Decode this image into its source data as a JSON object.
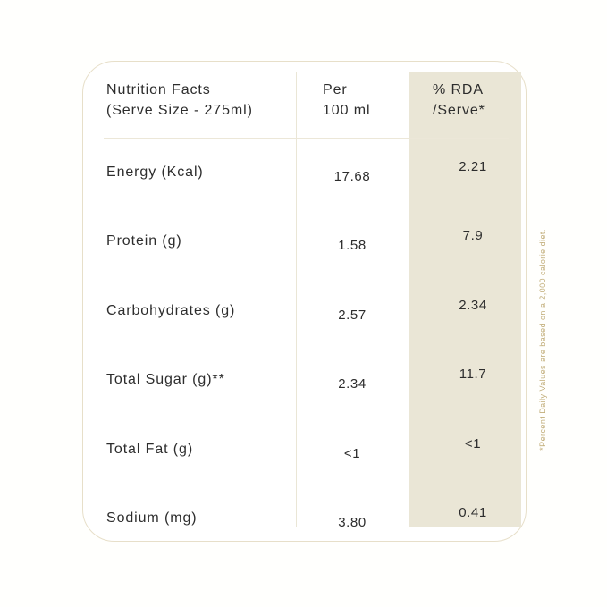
{
  "label": {
    "header": {
      "title": "Nutrition Facts\n(Serve Size - 275ml)",
      "col_per_100ml": "Per\n100 ml",
      "col_rda_serve": "% RDA\n/Serve*"
    },
    "rows": [
      {
        "label": "Energy (Kcal)",
        "per_100ml": "17.68",
        "rda_serve": "2.21"
      },
      {
        "label": "Protein (g)",
        "per_100ml": "1.58",
        "rda_serve": "7.9"
      },
      {
        "label": "Carbohydrates (g)",
        "per_100ml": "2.57",
        "rda_serve": "2.34"
      },
      {
        "label": "Total Sugar (g)**",
        "per_100ml": "2.34",
        "rda_serve": "11.7"
      },
      {
        "label": "Total Fat (g)",
        "per_100ml": "<1",
        "rda_serve": "<1"
      },
      {
        "label": "Sodium (mg)",
        "per_100ml": "3.80",
        "rda_serve": "0.41"
      }
    ],
    "footnote": "*Percent Daily Values are based on a 2,000 calorie diet.",
    "colors": {
      "text": "#2d2d2d",
      "border": "#e7dfc9",
      "divider": "#eae6d6",
      "accent_footnote": "#c2ae7a"
    }
  }
}
